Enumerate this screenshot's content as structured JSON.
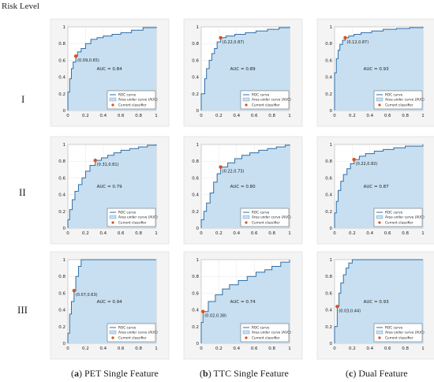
{
  "figure": {
    "row_header": "Risk Level",
    "rows": [
      "I",
      "II",
      "III"
    ],
    "columns": [
      {
        "tag": "a",
        "label": "PET Single Feature"
      },
      {
        "tag": "b",
        "label": "TTC Single Feature"
      },
      {
        "tag": "c",
        "label": "Dual Feature"
      }
    ],
    "legend_items": [
      "ROC curve",
      "Area under curve (AUC)",
      "Current classifier"
    ],
    "colors": {
      "curve": "#2f6ea8",
      "area": "#c7dff0",
      "point": "#d95319",
      "grid": "#e6e6e6",
      "legend_border": "#333333"
    }
  },
  "chart_data": [
    {
      "type": "area",
      "row": "I",
      "column": "a",
      "auc_label": "AUC = 0.84",
      "point": [
        0.09,
        0.65
      ],
      "point_label": "(0.09,0.65)",
      "x": [
        0,
        0,
        0.02,
        0.02,
        0.04,
        0.04,
        0.06,
        0.06,
        0.09,
        0.09,
        0.11,
        0.11,
        0.15,
        0.15,
        0.2,
        0.2,
        0.26,
        0.26,
        0.33,
        0.33,
        0.4,
        0.4,
        0.5,
        0.5,
        0.6,
        0.6,
        0.72,
        0.72,
        0.85,
        0.85,
        1,
        1
      ],
      "y": [
        0,
        0.22,
        0.22,
        0.38,
        0.38,
        0.5,
        0.5,
        0.58,
        0.58,
        0.65,
        0.65,
        0.7,
        0.7,
        0.74,
        0.74,
        0.8,
        0.8,
        0.85,
        0.85,
        0.87,
        0.87,
        0.89,
        0.89,
        0.91,
        0.91,
        0.93,
        0.93,
        0.96,
        0.96,
        0.99,
        0.99,
        1
      ],
      "xlim": [
        0,
        1
      ],
      "ylim": [
        0,
        1
      ],
      "xticks": [
        0,
        0.2,
        0.4,
        0.6,
        0.8,
        1
      ],
      "yticks": [
        0,
        0.2,
        0.4,
        0.6,
        0.8,
        1
      ],
      "grid": true
    },
    {
      "type": "area",
      "row": "I",
      "column": "b",
      "auc_label": "AUC = 0.89",
      "point": [
        0.22,
        0.87
      ],
      "point_label": "(0.22,0.87)",
      "x": [
        0,
        0,
        0.04,
        0.04,
        0.06,
        0.06,
        0.09,
        0.09,
        0.12,
        0.12,
        0.15,
        0.15,
        0.18,
        0.18,
        0.22,
        0.22,
        0.28,
        0.28,
        0.38,
        0.38,
        0.5,
        0.5,
        0.62,
        0.62,
        0.75,
        0.75,
        0.88,
        0.88,
        1,
        1
      ],
      "y": [
        0,
        0.2,
        0.2,
        0.38,
        0.38,
        0.5,
        0.5,
        0.6,
        0.6,
        0.68,
        0.68,
        0.74,
        0.74,
        0.82,
        0.82,
        0.87,
        0.87,
        0.89,
        0.89,
        0.91,
        0.91,
        0.93,
        0.93,
        0.95,
        0.95,
        0.97,
        0.97,
        0.99,
        0.99,
        1
      ],
      "xlim": [
        0,
        1
      ],
      "ylim": [
        0,
        1
      ],
      "xticks": [
        0,
        0.2,
        0.4,
        0.6,
        0.8,
        1
      ],
      "yticks": [
        0,
        0.2,
        0.4,
        0.6,
        0.8,
        1
      ],
      "grid": true
    },
    {
      "type": "area",
      "row": "I",
      "column": "c",
      "auc_label": "AUC = 0.93",
      "point": [
        0.12,
        0.87
      ],
      "point_label": "(0.12,0.87)",
      "x": [
        0,
        0,
        0.02,
        0.02,
        0.04,
        0.04,
        0.06,
        0.06,
        0.09,
        0.09,
        0.12,
        0.12,
        0.16,
        0.16,
        0.22,
        0.22,
        0.3,
        0.3,
        0.42,
        0.42,
        0.55,
        0.55,
        0.7,
        0.7,
        0.85,
        0.85,
        1,
        1
      ],
      "y": [
        0,
        0.45,
        0.45,
        0.62,
        0.62,
        0.72,
        0.72,
        0.79,
        0.79,
        0.84,
        0.84,
        0.87,
        0.87,
        0.89,
        0.89,
        0.91,
        0.91,
        0.93,
        0.93,
        0.95,
        0.95,
        0.97,
        0.97,
        0.98,
        0.98,
        0.99,
        0.99,
        1
      ],
      "xlim": [
        0,
        1
      ],
      "ylim": [
        0,
        1
      ],
      "xticks": [
        0,
        0.2,
        0.4,
        0.6,
        0.8,
        1
      ],
      "yticks": [
        0,
        0.2,
        0.4,
        0.6,
        0.8,
        1
      ],
      "grid": true
    },
    {
      "type": "area",
      "row": "II",
      "column": "a",
      "auc_label": "AUC = 0.79",
      "point": [
        0.31,
        0.81
      ],
      "point_label": "(0.31,0.81)",
      "x": [
        0,
        0,
        0.02,
        0.02,
        0.05,
        0.05,
        0.08,
        0.08,
        0.12,
        0.12,
        0.16,
        0.16,
        0.2,
        0.2,
        0.25,
        0.25,
        0.31,
        0.31,
        0.38,
        0.38,
        0.45,
        0.45,
        0.52,
        0.52,
        0.6,
        0.6,
        0.7,
        0.7,
        0.8,
        0.8,
        0.9,
        0.9,
        1,
        1
      ],
      "y": [
        0,
        0.1,
        0.1,
        0.22,
        0.22,
        0.34,
        0.34,
        0.44,
        0.44,
        0.52,
        0.52,
        0.6,
        0.6,
        0.68,
        0.68,
        0.75,
        0.75,
        0.81,
        0.81,
        0.84,
        0.84,
        0.87,
        0.87,
        0.9,
        0.9,
        0.93,
        0.93,
        0.95,
        0.95,
        0.97,
        0.97,
        0.99,
        0.99,
        1
      ],
      "xlim": [
        0,
        1
      ],
      "ylim": [
        0,
        1
      ],
      "xticks": [
        0,
        0.2,
        0.4,
        0.6,
        0.8,
        1
      ],
      "yticks": [
        0,
        0.2,
        0.4,
        0.6,
        0.8,
        1
      ],
      "grid": true
    },
    {
      "type": "area",
      "row": "II",
      "column": "b",
      "auc_label": "AUC = 0.80",
      "point": [
        0.22,
        0.73
      ],
      "point_label": "(0.22,0.73)",
      "x": [
        0,
        0,
        0.03,
        0.03,
        0.06,
        0.06,
        0.1,
        0.1,
        0.14,
        0.14,
        0.18,
        0.18,
        0.22,
        0.22,
        0.3,
        0.3,
        0.38,
        0.38,
        0.46,
        0.46,
        0.55,
        0.55,
        0.65,
        0.65,
        0.75,
        0.75,
        0.85,
        0.85,
        0.95,
        0.95,
        1,
        1
      ],
      "y": [
        0,
        0.1,
        0.1,
        0.2,
        0.2,
        0.3,
        0.3,
        0.42,
        0.42,
        0.55,
        0.55,
        0.65,
        0.65,
        0.73,
        0.73,
        0.78,
        0.78,
        0.83,
        0.83,
        0.87,
        0.87,
        0.9,
        0.9,
        0.93,
        0.93,
        0.95,
        0.95,
        0.97,
        0.97,
        0.99,
        0.99,
        1
      ],
      "xlim": [
        0,
        1
      ],
      "ylim": [
        0,
        1
      ],
      "xticks": [
        0,
        0.2,
        0.4,
        0.6,
        0.8,
        1
      ],
      "yticks": [
        0,
        0.2,
        0.4,
        0.6,
        0.8,
        1
      ],
      "grid": true
    },
    {
      "type": "area",
      "row": "II",
      "column": "c",
      "auc_label": "AUC = 0.87",
      "point": [
        0.22,
        0.82
      ],
      "point_label": "(0.22,0.82)",
      "x": [
        0,
        0,
        0.02,
        0.02,
        0.04,
        0.04,
        0.07,
        0.07,
        0.1,
        0.1,
        0.14,
        0.14,
        0.18,
        0.18,
        0.22,
        0.22,
        0.28,
        0.28,
        0.35,
        0.35,
        0.45,
        0.45,
        0.55,
        0.55,
        0.67,
        0.67,
        0.8,
        0.8,
        1,
        1
      ],
      "y": [
        0,
        0.18,
        0.18,
        0.32,
        0.32,
        0.45,
        0.45,
        0.56,
        0.56,
        0.64,
        0.64,
        0.71,
        0.71,
        0.77,
        0.77,
        0.82,
        0.82,
        0.86,
        0.86,
        0.89,
        0.89,
        0.92,
        0.92,
        0.94,
        0.94,
        0.96,
        0.96,
        0.98,
        0.98,
        1
      ],
      "xlim": [
        0,
        1
      ],
      "ylim": [
        0,
        1
      ],
      "xticks": [
        0,
        0.2,
        0.4,
        0.6,
        0.8,
        1
      ],
      "yticks": [
        0,
        0.2,
        0.4,
        0.6,
        0.8,
        1
      ],
      "grid": true
    },
    {
      "type": "area",
      "row": "III",
      "column": "a",
      "auc_label": "AUC = 0.94",
      "point": [
        0.07,
        0.63
      ],
      "point_label": "(0.07,0.63)",
      "x": [
        0,
        0,
        0.02,
        0.02,
        0.04,
        0.04,
        0.07,
        0.07,
        0.09,
        0.09,
        0.12,
        0.12,
        0.15,
        0.15,
        1,
        1
      ],
      "y": [
        0,
        0.12,
        0.12,
        0.35,
        0.35,
        0.5,
        0.5,
        0.63,
        0.63,
        0.8,
        0.8,
        0.92,
        0.92,
        1,
        1,
        1
      ],
      "xlim": [
        0,
        1
      ],
      "ylim": [
        0,
        1
      ],
      "xticks": [
        0,
        0.2,
        0.4,
        0.6,
        0.8,
        1
      ],
      "yticks": [
        0,
        0.2,
        0.4,
        0.6,
        0.8,
        1
      ],
      "grid": true
    },
    {
      "type": "area",
      "row": "III",
      "column": "b",
      "auc_label": "AUC = 0.74",
      "point": [
        0.02,
        0.38
      ],
      "point_label": "(0.02,0.38)",
      "x": [
        0,
        0,
        0.02,
        0.02,
        0.08,
        0.08,
        0.16,
        0.16,
        0.24,
        0.24,
        0.32,
        0.32,
        0.42,
        0.42,
        0.52,
        0.52,
        0.62,
        0.62,
        0.72,
        0.72,
        0.8,
        0.8,
        0.9,
        0.9,
        1,
        1
      ],
      "y": [
        0,
        0.25,
        0.25,
        0.38,
        0.38,
        0.5,
        0.5,
        0.58,
        0.58,
        0.65,
        0.65,
        0.7,
        0.7,
        0.75,
        0.75,
        0.8,
        0.8,
        0.85,
        0.85,
        0.88,
        0.88,
        0.92,
        0.92,
        0.97,
        0.97,
        1
      ],
      "xlim": [
        0,
        1
      ],
      "ylim": [
        0,
        1
      ],
      "xticks": [
        0,
        0.2,
        0.4,
        0.6,
        0.8,
        1
      ],
      "yticks": [
        0,
        0.2,
        0.4,
        0.6,
        0.8,
        1
      ],
      "grid": true
    },
    {
      "type": "area",
      "row": "III",
      "column": "c",
      "auc_label": "AUC = 0.93",
      "point": [
        0.03,
        0.44
      ],
      "point_label": "(0.03,0.44)",
      "x": [
        0,
        0,
        0.03,
        0.03,
        0.05,
        0.05,
        0.07,
        0.07,
        0.1,
        0.1,
        0.13,
        0.13,
        0.16,
        0.16,
        0.2,
        0.2,
        1,
        1
      ],
      "y": [
        0,
        0.2,
        0.2,
        0.44,
        0.44,
        0.6,
        0.6,
        0.72,
        0.72,
        0.82,
        0.82,
        0.9,
        0.9,
        0.96,
        0.96,
        1,
        1,
        1
      ],
      "xlim": [
        0,
        1
      ],
      "ylim": [
        0,
        1
      ],
      "xticks": [
        0,
        0.2,
        0.4,
        0.6,
        0.8,
        1
      ],
      "yticks": [
        0,
        0.2,
        0.4,
        0.6,
        0.8,
        1
      ],
      "grid": true
    }
  ]
}
